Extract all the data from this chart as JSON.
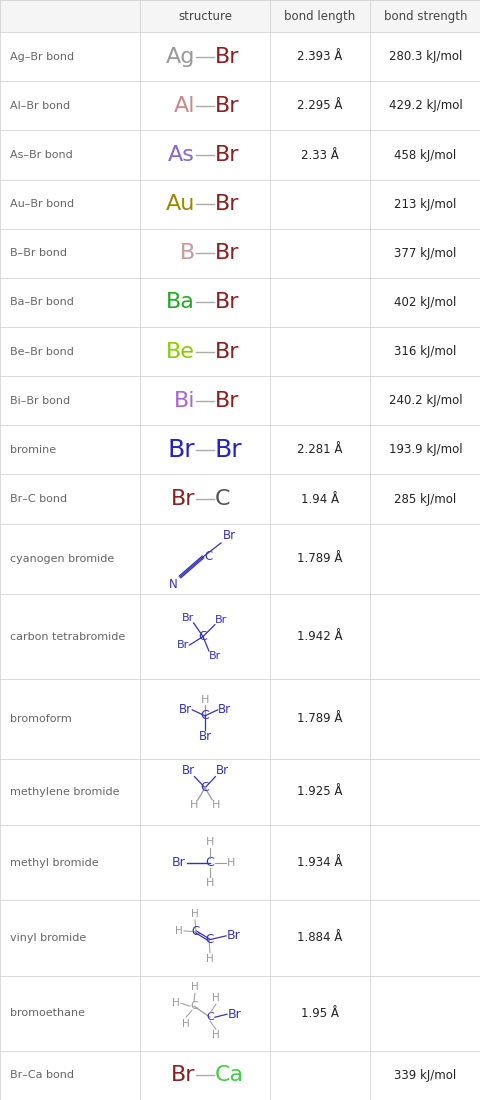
{
  "rows": [
    {
      "name": "Ag–Br bond",
      "bond_length": "2.393 Å",
      "bond_strength": "280.3 kJ/mol",
      "structure_type": "simple_bond",
      "el1": "Ag",
      "el2": "Br",
      "el1_color": "#999999",
      "el2_color": "#8B2020"
    },
    {
      "name": "Al–Br bond",
      "bond_length": "2.295 Å",
      "bond_strength": "429.2 kJ/mol",
      "structure_type": "simple_bond",
      "el1": "Al",
      "el2": "Br",
      "el1_color": "#cc8888",
      "el2_color": "#8B2020"
    },
    {
      "name": "As–Br bond",
      "bond_length": "2.33 Å",
      "bond_strength": "458 kJ/mol",
      "structure_type": "simple_bond",
      "el1": "As",
      "el2": "Br",
      "el1_color": "#8866cc",
      "el2_color": "#8B2020"
    },
    {
      "name": "Au–Br bond",
      "bond_length": "",
      "bond_strength": "213 kJ/mol",
      "structure_type": "simple_bond",
      "el1": "Au",
      "el2": "Br",
      "el1_color": "#998800",
      "el2_color": "#8B2020"
    },
    {
      "name": "B–Br bond",
      "bond_length": "",
      "bond_strength": "377 kJ/mol",
      "structure_type": "simple_bond",
      "el1": "B",
      "el2": "Br",
      "el1_color": "#cc9999",
      "el2_color": "#8B2020"
    },
    {
      "name": "Ba–Br bond",
      "bond_length": "",
      "bond_strength": "402 kJ/mol",
      "structure_type": "simple_bond",
      "el1": "Ba",
      "el2": "Br",
      "el1_color": "#22aa22",
      "el2_color": "#8B2020"
    },
    {
      "name": "Be–Br bond",
      "bond_length": "",
      "bond_strength": "316 kJ/mol",
      "structure_type": "simple_bond",
      "el1": "Be",
      "el2": "Br",
      "el1_color": "#88cc00",
      "el2_color": "#8B2020"
    },
    {
      "name": "Bi–Br bond",
      "bond_length": "",
      "bond_strength": "240.2 kJ/mol",
      "structure_type": "simple_bond",
      "el1": "Bi",
      "el2": "Br",
      "el1_color": "#aa66cc",
      "el2_color": "#8B2020"
    },
    {
      "name": "bromine",
      "bond_length": "2.281 Å",
      "bond_strength": "193.9 kJ/mol",
      "structure_type": "simple_bond",
      "el1": "Br",
      "el2": "Br",
      "el1_color": "#2222cc",
      "el2_color": "#2222cc"
    },
    {
      "name": "Br–C bond",
      "bond_length": "1.94 Å",
      "bond_strength": "285 kJ/mol",
      "structure_type": "simple_bond",
      "el1": "Br",
      "el2": "C",
      "el1_color": "#8B2020",
      "el2_color": "#555555"
    },
    {
      "name": "cyanogen bromide",
      "bond_length": "1.789 Å",
      "bond_strength": "",
      "structure_type": "cyanogen_bromide"
    },
    {
      "name": "carbon tetrabromide",
      "bond_length": "1.942 Å",
      "bond_strength": "",
      "structure_type": "carbon_tetrabromide"
    },
    {
      "name": "bromoform",
      "bond_length": "1.789 Å",
      "bond_strength": "",
      "structure_type": "bromoform"
    },
    {
      "name": "methylene bromide",
      "bond_length": "1.925 Å",
      "bond_strength": "",
      "structure_type": "methylene_bromide"
    },
    {
      "name": "methyl bromide",
      "bond_length": "1.934 Å",
      "bond_strength": "",
      "structure_type": "methyl_bromide"
    },
    {
      "name": "vinyl bromide",
      "bond_length": "1.884 Å",
      "bond_strength": "",
      "structure_type": "vinyl_bromide"
    },
    {
      "name": "bromoethane",
      "bond_length": "1.95 Å",
      "bond_strength": "",
      "structure_type": "bromoethane"
    },
    {
      "name": "Br–Ca bond",
      "bond_length": "",
      "bond_strength": "339 kJ/mol",
      "structure_type": "simple_bond",
      "el1": "Br",
      "el2": "Ca",
      "el1_color": "#8B2020",
      "el2_color": "#44cc44"
    }
  ],
  "col_headers": [
    "structure",
    "bond length",
    "bond strength"
  ],
  "grid_color": "#cccccc",
  "mol_color": "#3333bb",
  "mol_h_color": "#999999",
  "bond_line_color": "#aaaaaa"
}
